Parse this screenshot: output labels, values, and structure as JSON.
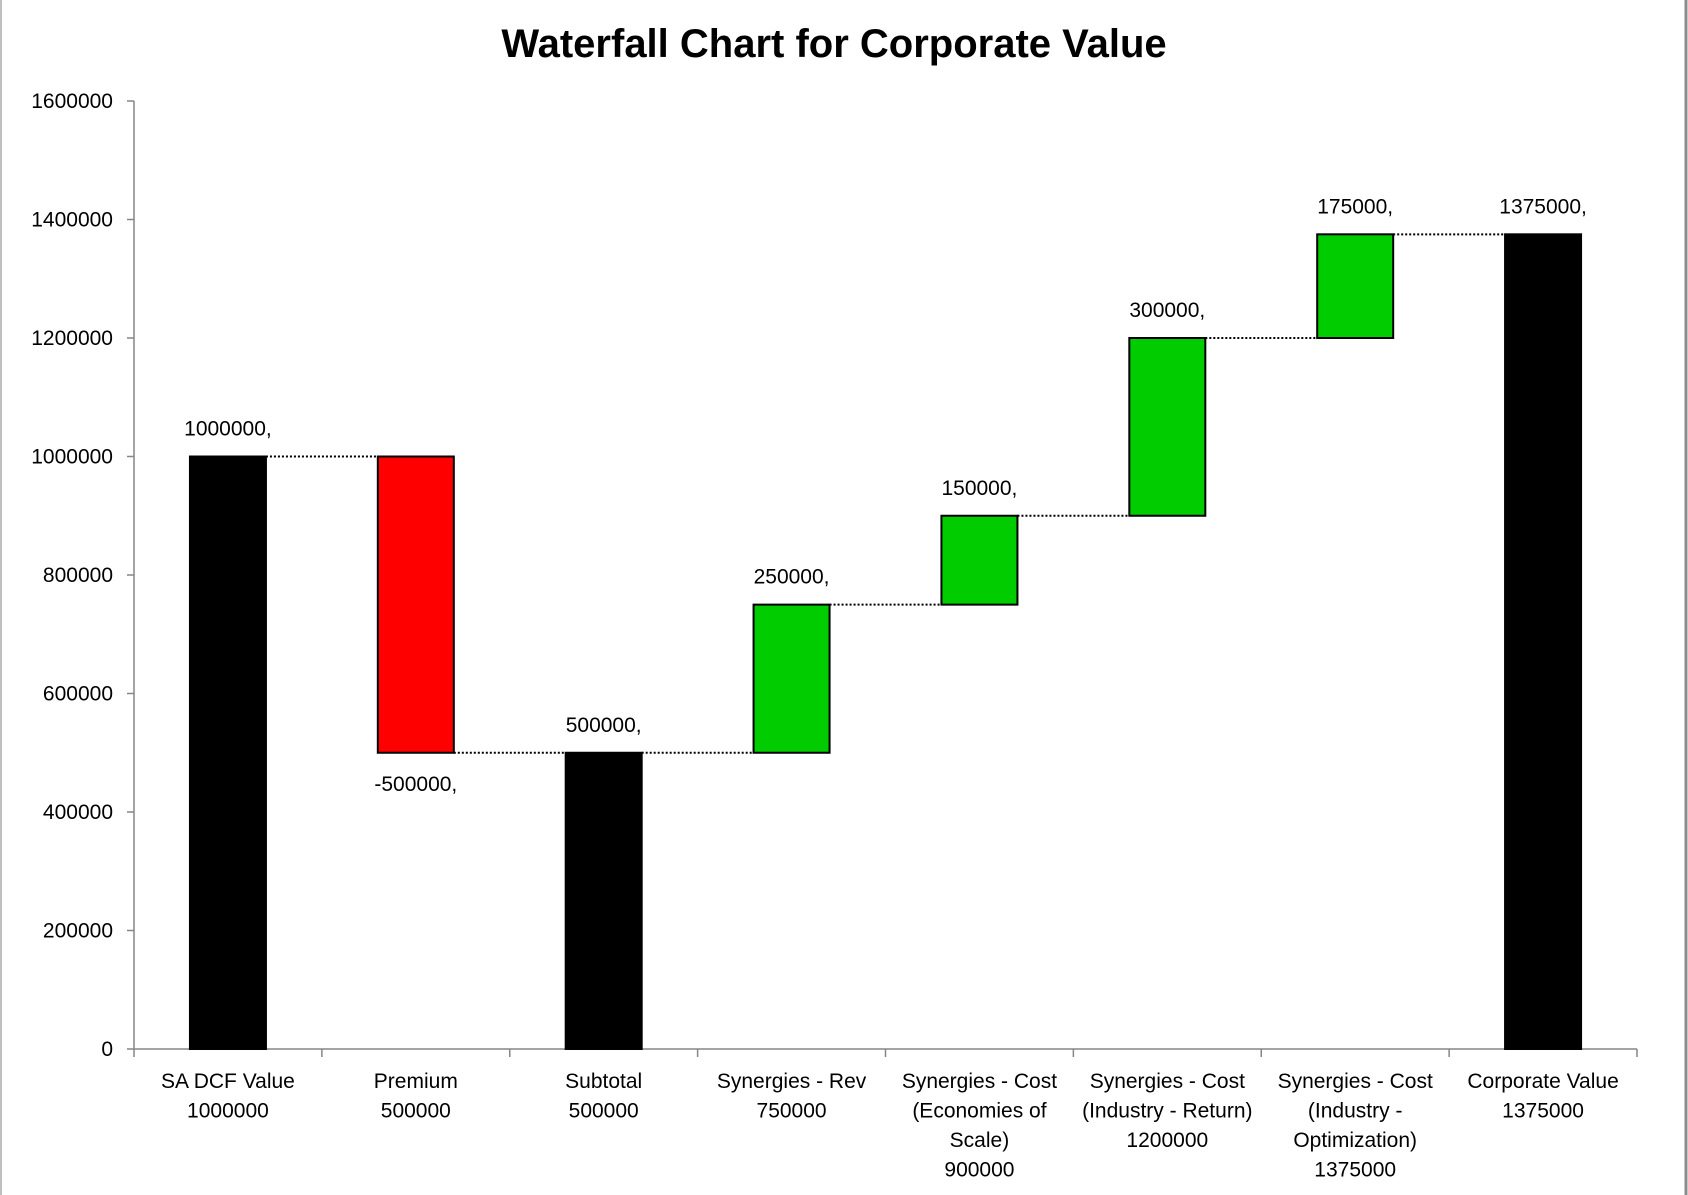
{
  "chart_data": {
    "type": "bar",
    "subtype": "waterfall",
    "title": "Waterfall Chart for Corporate Value",
    "xlabel": "",
    "ylabel": "",
    "ylim": [
      0,
      1600000
    ],
    "yticks": [
      "0",
      "200000",
      "400000",
      "600000",
      "800000",
      "1000000",
      "1200000",
      "1400000",
      "1600000"
    ],
    "grid": false,
    "legend": "none",
    "categories": [
      [
        "SA DCF Value",
        "1000000"
      ],
      [
        "Premium",
        "500000"
      ],
      [
        "Subtotal",
        "500000"
      ],
      [
        "Synergies - Rev",
        "750000"
      ],
      [
        "Synergies - Cost",
        "(Economies of",
        "Scale)",
        "900000"
      ],
      [
        "Synergies - Cost",
        "(Industry - Return)",
        "1200000"
      ],
      [
        "Synergies - Cost",
        "(Industry -",
        "Optimization)",
        "1375000"
      ],
      [
        "Corporate Value",
        "1375000"
      ]
    ],
    "bars": [
      {
        "start": 0,
        "end": 1000000,
        "kind": "total",
        "label": "1000000,"
      },
      {
        "start": 1000000,
        "end": 500000,
        "kind": "decrease",
        "label": "-500000,"
      },
      {
        "start": 0,
        "end": 500000,
        "kind": "total",
        "label": "500000,"
      },
      {
        "start": 500000,
        "end": 750000,
        "kind": "increase",
        "label": "250000,"
      },
      {
        "start": 750000,
        "end": 900000,
        "kind": "increase",
        "label": "150000,"
      },
      {
        "start": 900000,
        "end": 1200000,
        "kind": "increase",
        "label": "300000,"
      },
      {
        "start": 1200000,
        "end": 1375000,
        "kind": "increase",
        "label": "175000,"
      },
      {
        "start": 0,
        "end": 1375000,
        "kind": "total",
        "label": "1375000,"
      }
    ],
    "colors": {
      "total": "#000000",
      "increase": "#00cc00",
      "decrease": "#ff0000"
    }
  }
}
